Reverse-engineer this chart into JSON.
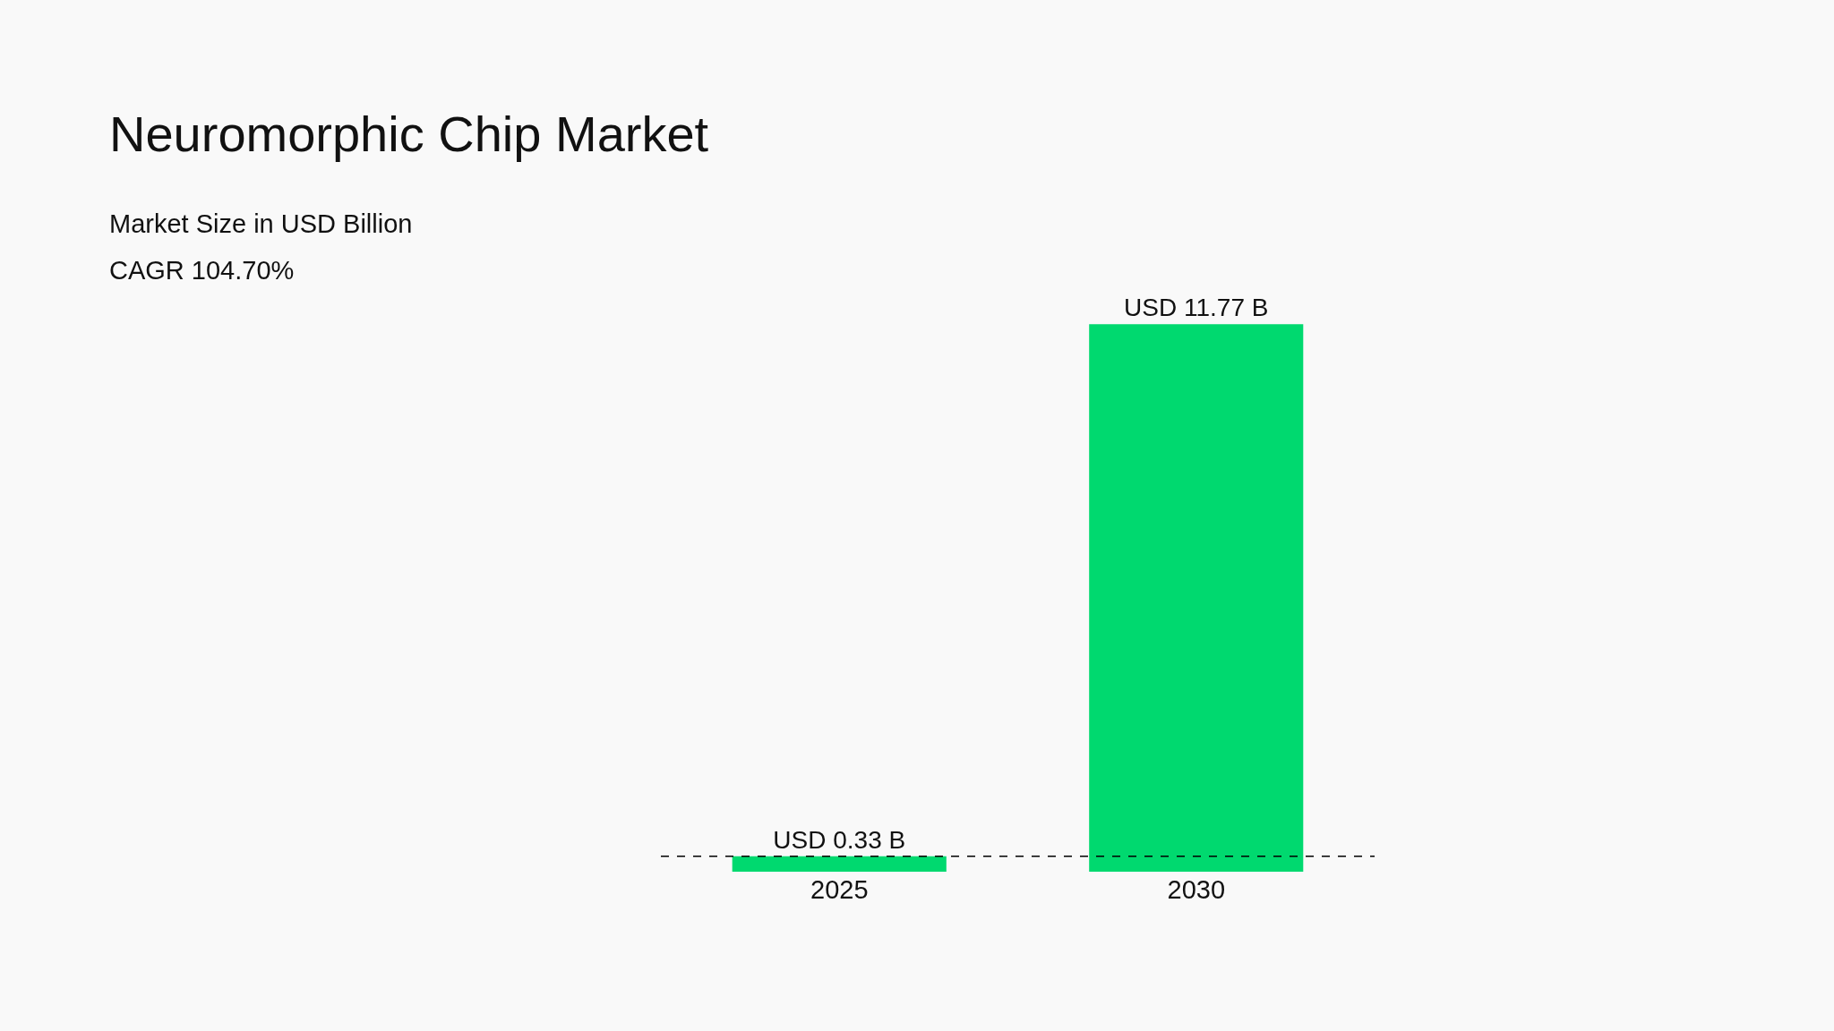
{
  "chart_data": {
    "type": "bar",
    "title": "Neuromorphic Chip Market",
    "subtitle": "Market Size in USD Billion",
    "annotations": [
      "CAGR 104.70%"
    ],
    "categories": [
      "2025",
      "2030"
    ],
    "values": [
      0.33,
      11.77
    ],
    "value_labels": [
      "USD 0.33 B",
      "USD 11.77 B"
    ],
    "color": "#00d96f",
    "ref_lines": [
      {
        "axis": "y",
        "value": 0.33,
        "label": null,
        "color": "#000000",
        "line_style": "dashed"
      }
    ],
    "grid": false
  }
}
